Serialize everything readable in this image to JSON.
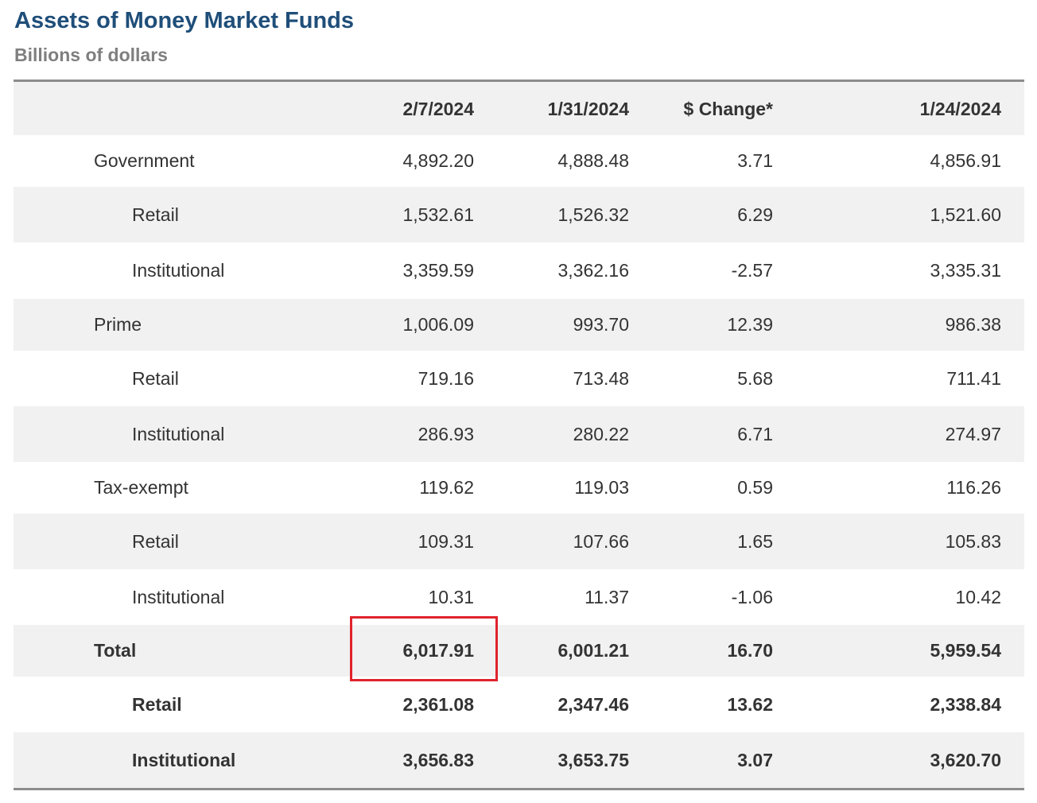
{
  "title": "Assets of Money Market Funds",
  "subtitle": "Billions of dollars",
  "columns": [
    "",
    "2/7/2024",
    "1/31/2024",
    "$ Change*",
    "1/24/2024"
  ],
  "rows": [
    {
      "label": "Government",
      "values": [
        "4,892.20",
        "4,888.48",
        "3.71",
        "4,856.91"
      ]
    },
    {
      "label": "Retail",
      "values": [
        "1,532.61",
        "1,526.32",
        "6.29",
        "1,521.60"
      ]
    },
    {
      "label": "Institutional",
      "values": [
        "3,359.59",
        "3,362.16",
        "-2.57",
        "3,335.31"
      ]
    },
    {
      "label": "Prime",
      "values": [
        "1,006.09",
        "993.70",
        "12.39",
        "986.38"
      ]
    },
    {
      "label": "Retail",
      "values": [
        "719.16",
        "713.48",
        "5.68",
        "711.41"
      ]
    },
    {
      "label": "Institutional",
      "values": [
        "286.93",
        "280.22",
        "6.71",
        "274.97"
      ]
    },
    {
      "label": "Tax-exempt",
      "values": [
        "119.62",
        "119.03",
        "0.59",
        "116.26"
      ]
    },
    {
      "label": "Retail",
      "values": [
        "109.31",
        "107.66",
        "1.65",
        "105.83"
      ]
    },
    {
      "label": "Institutional",
      "values": [
        "10.31",
        "11.37",
        "-1.06",
        "10.42"
      ]
    },
    {
      "label": "Total",
      "values": [
        "6,017.91",
        "6,001.21",
        "16.70",
        "5,959.54"
      ]
    },
    {
      "label": "Retail",
      "values": [
        "2,361.08",
        "2,347.46",
        "13.62",
        "2,338.84"
      ]
    },
    {
      "label": "Institutional",
      "values": [
        "3,656.83",
        "3,653.75",
        "3.07",
        "3,620.70"
      ]
    }
  ],
  "colors": {
    "title": "#1f4e79",
    "subtitle": "#7f7f7f",
    "highlight": "#e0232c",
    "stripe": "#f1f1f1"
  }
}
